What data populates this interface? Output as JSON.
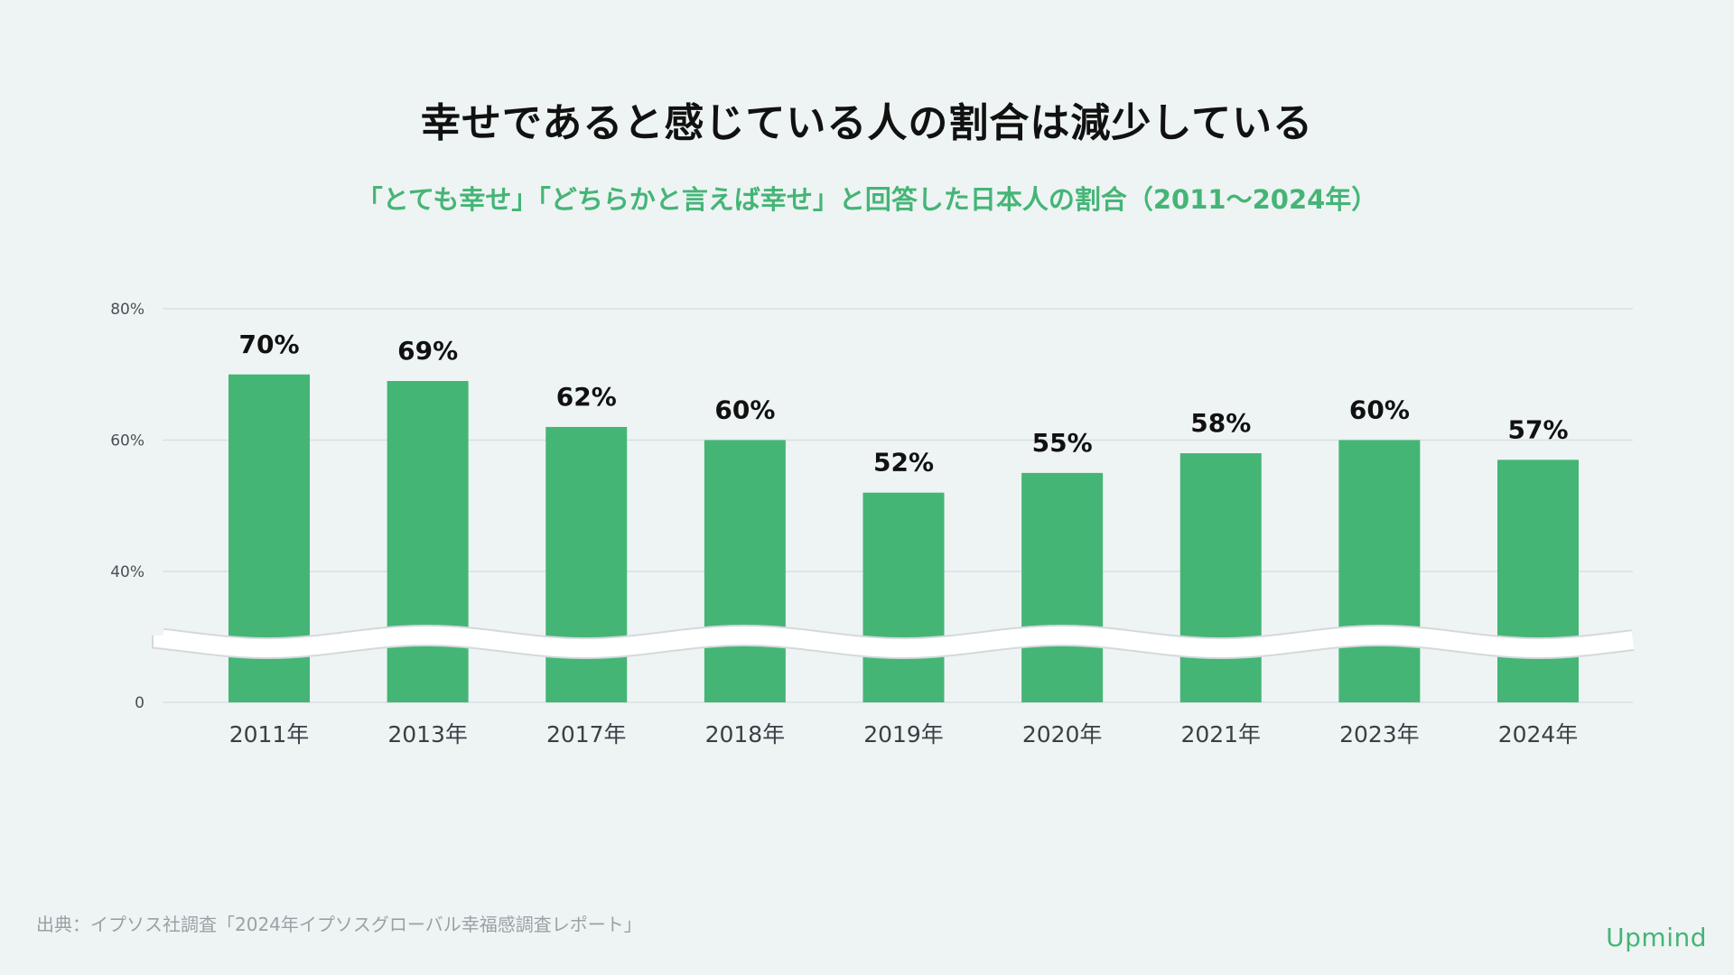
{
  "header": {
    "title": "幸せであると感じている人の割合は減少している",
    "subtitle": "「とても幸せ」「どちらかと言えば幸せ」と回答した日本人の割合（2011〜2024年）"
  },
  "footer": {
    "source": "出典：イプソス社調査「2024年イプソスグローバル幸福感調査レポート」",
    "brand": "Upmind"
  },
  "colors": {
    "bar": "#45b576",
    "accent": "#45b576",
    "grid": "#d9e0e2",
    "background": "#eef4f4"
  },
  "chart_data": {
    "type": "bar",
    "title": "幸せであると感じている人の割合は減少している",
    "subtitle": "「とても幸せ」「どちらかと言えば幸せ」と回答した日本人の割合（2011〜2024年）",
    "categories": [
      "2011年",
      "2013年",
      "2017年",
      "2018年",
      "2019年",
      "2020年",
      "2021年",
      "2023年",
      "2024年"
    ],
    "values": [
      70,
      69,
      62,
      60,
      52,
      55,
      58,
      60,
      57
    ],
    "data_labels": [
      "70%",
      "69%",
      "62%",
      "60%",
      "52%",
      "55%",
      "58%",
      "60%",
      "57%"
    ],
    "yticks": [
      {
        "value": 0,
        "label": "0"
      },
      {
        "value": 40,
        "label": "40%"
      },
      {
        "value": 60,
        "label": "60%"
      },
      {
        "value": 80,
        "label": "80%"
      }
    ],
    "ylim": [
      0,
      80
    ],
    "axis_break": true,
    "grid": true,
    "xlabel": "",
    "ylabel": ""
  }
}
